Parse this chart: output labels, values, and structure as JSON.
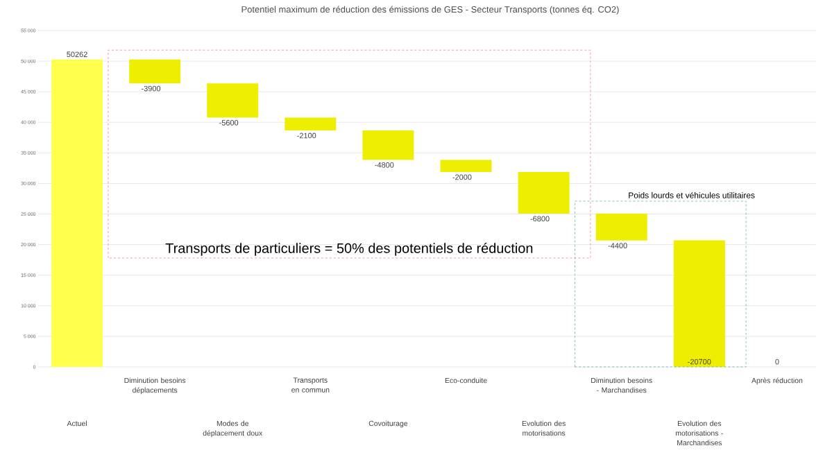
{
  "chart_data": {
    "type": "bar",
    "title": "Potentiel maximum de réduction des émissions de GES - Secteur Transports (tonnes éq. CO2)",
    "categories": [
      "Actuel",
      "Diminution besoins déplacements",
      "Modes de déplacement doux",
      "Transports en commun",
      "Covoiturage",
      "Eco-conduite",
      "Evolution des motorisations",
      "Diminution besoins - Marchandises",
      "Evolution des motorisations - Marchandises",
      "Après réduction"
    ],
    "values": [
      50262,
      -3900,
      -5600,
      -2100,
      -4800,
      -2000,
      -6800,
      -4400,
      -20700,
      0
    ],
    "base": [
      0,
      50262,
      46362,
      40762,
      38662,
      33862,
      31862,
      25062,
      20700,
      null
    ],
    "colors": [
      "#ffff4d",
      "#eeee00",
      "#eeee00",
      "#eeee00",
      "#eeee00",
      "#eeee00",
      "#eeee00",
      "#eeee00",
      "#eeee00",
      "#eeee00"
    ],
    "data_labels": true,
    "ylim": [
      0,
      55000
    ],
    "yticks": [
      0,
      {
        "value": 5000,
        "label": "5 000"
      },
      {
        "value": 10000,
        "label": "10 000"
      },
      {
        "value": 15000,
        "label": "15 000"
      },
      {
        "value": 20000,
        "label": "20 000"
      },
      {
        "value": 25000,
        "label": "25 000"
      },
      {
        "value": 30000,
        "label": "30 000"
      },
      {
        "value": 35000,
        "label": "35 000"
      },
      {
        "value": 40000,
        "label": "40 000"
      },
      {
        "value": 45000,
        "label": "45 000"
      },
      {
        "value": 50000,
        "label": "50 000"
      },
      {
        "value": 55000,
        "label": "55 000"
      }
    ],
    "grid": "y",
    "annotations": [
      "Transports de particuliers = 50% des potentiels de réduction",
      "Poids lourds et véhicules utilitaires"
    ]
  }
}
